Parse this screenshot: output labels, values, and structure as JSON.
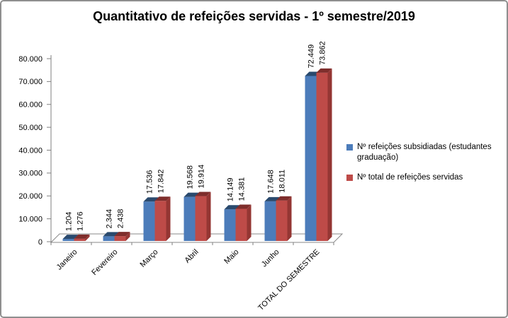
{
  "chart_data": {
    "type": "bar",
    "effect": "3d-clustered",
    "title": "Quantitativo de refeições servidas - 1º semestre/2019",
    "categories": [
      "Janeiro",
      "Fevereiro",
      "Março",
      "Abril",
      "Maio",
      "Junho",
      "TOTAL DO SEMESTRE"
    ],
    "series": [
      {
        "name": "Nº refeições subsidiadas (estudantes graduação)",
        "color": "#4C7CBA",
        "top_color": "#2A4A6E",
        "values": [
          1204,
          2344,
          17536,
          19568,
          14149,
          17648,
          72449
        ],
        "labels": [
          "1.204",
          "2.344",
          "17.536",
          "19.568",
          "14.149",
          "17.648",
          "72.449"
        ]
      },
      {
        "name": "Nº total  de refeições servidas",
        "color": "#BE4B48",
        "top_color": "#7E2D2B",
        "side_color": "#943633",
        "values": [
          1276,
          2438,
          17842,
          19914,
          14381,
          18011,
          73862
        ],
        "labels": [
          "1.276",
          "2.438",
          "17.842",
          "19.914",
          "14.381",
          "18.011",
          "73.862"
        ]
      }
    ],
    "xlabel": "",
    "ylabel": "",
    "ylim": [
      0,
      80000
    ],
    "ytick_step": 10000,
    "ytick_labels": [
      "0",
      "10.000",
      "20.000",
      "30.000",
      "40.000",
      "50.000",
      "60.000",
      "70.000",
      "80.000"
    ],
    "grid": false,
    "legend_position": "right",
    "axis_color": "#7F7F7F",
    "text_color": "#000000"
  }
}
